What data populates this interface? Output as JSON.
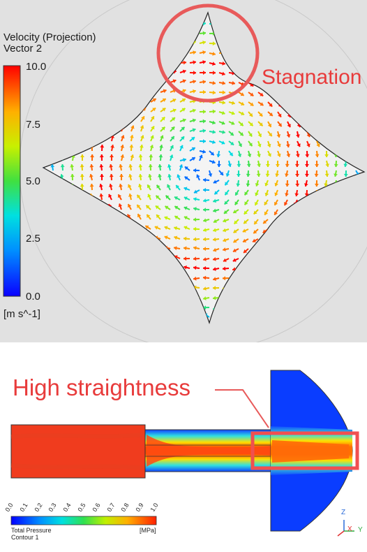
{
  "top_panel": {
    "legend": {
      "title_line1": "Velocity (Projection)",
      "title_line2": "Vector 2",
      "ticks": [
        "10.0",
        "7.5",
        "5.0",
        "2.5",
        "0.0"
      ],
      "unit": "[m s^-1]"
    },
    "annotation": "Stagnation",
    "annotation_color": "#e83b3b"
  },
  "bottom_panel": {
    "annotation": "High straightness",
    "annotation_color": "#e83b3b",
    "colorbar": {
      "ticks": [
        "0.0",
        "0.1",
        "0.2",
        "0.3",
        "0.4",
        "0.5",
        "0.6",
        "0.7",
        "0.8",
        "0.9",
        "1.0"
      ],
      "title": "Total Pressure",
      "subtitle": "Contour 1",
      "unit": "[MPa]"
    },
    "axes": {
      "z": "Z",
      "x": "X",
      "y": "Y"
    }
  }
}
